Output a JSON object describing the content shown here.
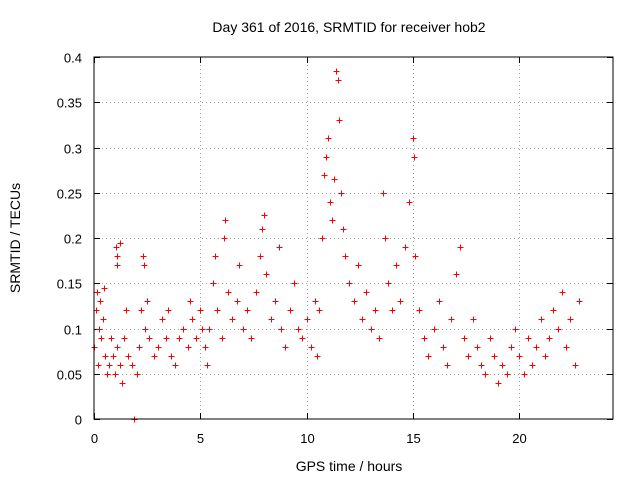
{
  "chart_data": {
    "type": "scatter",
    "title": "Day 361 of 2016, SRMTID for receiver hob2",
    "xlabel": "GPS time / hours",
    "ylabel": "SRMTID / TECUs",
    "xlim": [
      0,
      24.4
    ],
    "ylim": [
      0,
      0.4
    ],
    "xticks": [
      0,
      5,
      10,
      15,
      20
    ],
    "xtick_labels": [
      "0",
      "5",
      "10",
      "15",
      "20"
    ],
    "yticks": [
      0,
      0.05,
      0.1,
      0.15,
      0.2,
      0.25,
      0.3,
      0.35,
      0.4
    ],
    "ytick_labels": [
      "0",
      "0.05",
      "0.1",
      "0.15",
      "0.2",
      "0.25",
      "0.3",
      "0.35",
      "0.4"
    ],
    "grid": true,
    "marker": "+",
    "series_color": "#ff0000",
    "series": [
      {
        "name": "SRMTID",
        "points": [
          [
            0.0,
            0.08
          ],
          [
            0.1,
            0.12
          ],
          [
            0.15,
            0.14
          ],
          [
            0.2,
            0.06
          ],
          [
            0.25,
            0.1
          ],
          [
            0.3,
            0.13
          ],
          [
            0.35,
            0.09
          ],
          [
            0.4,
            0.11
          ],
          [
            0.45,
            0.145
          ],
          [
            0.5,
            0.07
          ],
          [
            0.6,
            0.05
          ],
          [
            0.7,
            0.06
          ],
          [
            0.8,
            0.09
          ],
          [
            0.9,
            0.07
          ],
          [
            1.0,
            0.05
          ],
          [
            1.1,
            0.08
          ],
          [
            1.2,
            0.06
          ],
          [
            1.3,
            0.04
          ],
          [
            1.4,
            0.09
          ],
          [
            1.5,
            0.12
          ],
          [
            1.05,
            0.19
          ],
          [
            1.1,
            0.18
          ],
          [
            1.1,
            0.17
          ],
          [
            1.2,
            0.195
          ],
          [
            1.6,
            0.07
          ],
          [
            1.8,
            0.06
          ],
          [
            1.9,
            0.0
          ],
          [
            2.0,
            0.05
          ],
          [
            2.1,
            0.08
          ],
          [
            2.2,
            0.12
          ],
          [
            2.3,
            0.18
          ],
          [
            2.35,
            0.17
          ],
          [
            2.4,
            0.1
          ],
          [
            2.5,
            0.13
          ],
          [
            2.6,
            0.09
          ],
          [
            2.8,
            0.07
          ],
          [
            3.0,
            0.08
          ],
          [
            3.2,
            0.11
          ],
          [
            3.4,
            0.09
          ],
          [
            3.5,
            0.12
          ],
          [
            3.6,
            0.07
          ],
          [
            3.8,
            0.06
          ],
          [
            4.0,
            0.09
          ],
          [
            4.2,
            0.1
          ],
          [
            4.4,
            0.08
          ],
          [
            4.5,
            0.13
          ],
          [
            4.6,
            0.11
          ],
          [
            4.8,
            0.09
          ],
          [
            5.0,
            0.12
          ],
          [
            5.1,
            0.1
          ],
          [
            5.2,
            0.08
          ],
          [
            5.3,
            0.06
          ],
          [
            5.4,
            0.1
          ],
          [
            5.6,
            0.15
          ],
          [
            5.7,
            0.18
          ],
          [
            5.8,
            0.12
          ],
          [
            6.0,
            0.09
          ],
          [
            6.1,
            0.2
          ],
          [
            6.15,
            0.22
          ],
          [
            6.3,
            0.14
          ],
          [
            6.5,
            0.11
          ],
          [
            6.7,
            0.13
          ],
          [
            6.8,
            0.17
          ],
          [
            7.0,
            0.1
          ],
          [
            7.2,
            0.12
          ],
          [
            7.4,
            0.09
          ],
          [
            7.6,
            0.14
          ],
          [
            7.8,
            0.18
          ],
          [
            7.9,
            0.21
          ],
          [
            8.0,
            0.225
          ],
          [
            8.1,
            0.16
          ],
          [
            8.3,
            0.11
          ],
          [
            8.5,
            0.13
          ],
          [
            8.7,
            0.19
          ],
          [
            8.8,
            0.1
          ],
          [
            9.0,
            0.08
          ],
          [
            9.2,
            0.12
          ],
          [
            9.4,
            0.15
          ],
          [
            9.6,
            0.1
          ],
          [
            9.8,
            0.09
          ],
          [
            10.0,
            0.11
          ],
          [
            10.2,
            0.08
          ],
          [
            10.4,
            0.13
          ],
          [
            10.5,
            0.07
          ],
          [
            10.6,
            0.12
          ],
          [
            10.7,
            0.2
          ],
          [
            10.8,
            0.27
          ],
          [
            10.9,
            0.29
          ],
          [
            11.0,
            0.31
          ],
          [
            11.1,
            0.24
          ],
          [
            11.2,
            0.22
          ],
          [
            11.3,
            0.265
          ],
          [
            11.4,
            0.385
          ],
          [
            11.45,
            0.375
          ],
          [
            11.5,
            0.33
          ],
          [
            11.6,
            0.25
          ],
          [
            11.7,
            0.21
          ],
          [
            11.8,
            0.18
          ],
          [
            12.0,
            0.15
          ],
          [
            12.2,
            0.13
          ],
          [
            12.4,
            0.17
          ],
          [
            12.6,
            0.11
          ],
          [
            12.8,
            0.14
          ],
          [
            13.0,
            0.1
          ],
          [
            13.2,
            0.12
          ],
          [
            13.4,
            0.09
          ],
          [
            13.6,
            0.25
          ],
          [
            13.7,
            0.2
          ],
          [
            13.8,
            0.15
          ],
          [
            14.0,
            0.12
          ],
          [
            14.2,
            0.17
          ],
          [
            14.4,
            0.13
          ],
          [
            14.6,
            0.19
          ],
          [
            14.8,
            0.24
          ],
          [
            15.0,
            0.31
          ],
          [
            15.05,
            0.29
          ],
          [
            15.1,
            0.18
          ],
          [
            15.3,
            0.12
          ],
          [
            15.5,
            0.09
          ],
          [
            15.7,
            0.07
          ],
          [
            16.0,
            0.1
          ],
          [
            16.2,
            0.13
          ],
          [
            16.4,
            0.08
          ],
          [
            16.6,
            0.06
          ],
          [
            16.8,
            0.11
          ],
          [
            17.0,
            0.16
          ],
          [
            17.2,
            0.19
          ],
          [
            17.4,
            0.09
          ],
          [
            17.6,
            0.07
          ],
          [
            17.8,
            0.11
          ],
          [
            18.0,
            0.08
          ],
          [
            18.2,
            0.06
          ],
          [
            18.4,
            0.05
          ],
          [
            18.6,
            0.09
          ],
          [
            18.8,
            0.07
          ],
          [
            19.0,
            0.04
          ],
          [
            19.2,
            0.06
          ],
          [
            19.4,
            0.05
          ],
          [
            19.6,
            0.08
          ],
          [
            19.8,
            0.1
          ],
          [
            20.0,
            0.07
          ],
          [
            20.2,
            0.05
          ],
          [
            20.4,
            0.09
          ],
          [
            20.6,
            0.06
          ],
          [
            20.8,
            0.08
          ],
          [
            21.0,
            0.11
          ],
          [
            21.2,
            0.07
          ],
          [
            21.4,
            0.09
          ],
          [
            21.6,
            0.12
          ],
          [
            21.8,
            0.1
          ],
          [
            22.0,
            0.14
          ],
          [
            22.2,
            0.08
          ],
          [
            22.4,
            0.11
          ],
          [
            22.6,
            0.06
          ],
          [
            22.8,
            0.13
          ]
        ]
      }
    ]
  }
}
